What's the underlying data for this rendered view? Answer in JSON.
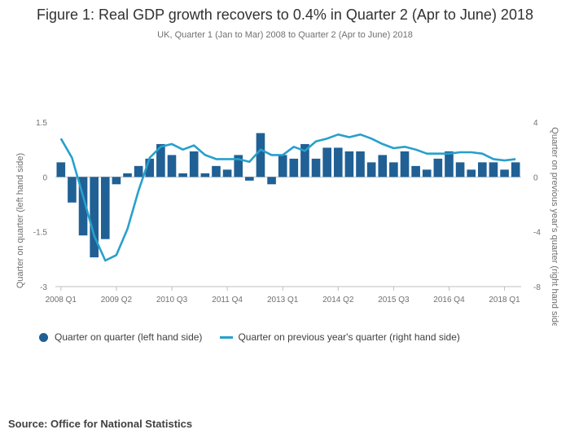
{
  "title": "Figure 1: Real GDP growth recovers to 0.4% in Quarter 2 (Apr to June) 2018",
  "subtitle": "UK, Quarter 1 (Jan to Mar) 2008 to Quarter 2 (Apr to June) 2018",
  "source": "Source: Office for National Statistics",
  "colors": {
    "bar": "#206095",
    "line": "#27a0cc",
    "axis": "#bfbfbf",
    "text": "#707071"
  },
  "chart_data": {
    "type": "bar+line",
    "categories": [
      "2008 Q1",
      "2008 Q2",
      "2008 Q3",
      "2008 Q4",
      "2009 Q1",
      "2009 Q2",
      "2009 Q3",
      "2009 Q4",
      "2010 Q1",
      "2010 Q2",
      "2010 Q3",
      "2010 Q4",
      "2011 Q1",
      "2011 Q2",
      "2011 Q3",
      "2011 Q4",
      "2012 Q1",
      "2012 Q2",
      "2012 Q3",
      "2012 Q4",
      "2013 Q1",
      "2013 Q2",
      "2013 Q3",
      "2013 Q4",
      "2014 Q1",
      "2014 Q2",
      "2014 Q3",
      "2014 Q4",
      "2015 Q1",
      "2015 Q2",
      "2015 Q3",
      "2015 Q4",
      "2016 Q1",
      "2016 Q2",
      "2016 Q3",
      "2016 Q4",
      "2017 Q1",
      "2017 Q2",
      "2017 Q3",
      "2017 Q4",
      "2018 Q1",
      "2018 Q2"
    ],
    "tick_labels": [
      "2008 Q1",
      "2009 Q2",
      "2010 Q3",
      "2011 Q4",
      "2013 Q1",
      "2014 Q2",
      "2015 Q3",
      "2016 Q4",
      "2018 Q1"
    ],
    "tick_indices": [
      0,
      5,
      10,
      15,
      20,
      25,
      30,
      35,
      40
    ],
    "series": [
      {
        "name": "Quarter on quarter (left hand side)",
        "type": "bar",
        "axis": "left",
        "values": [
          0.4,
          -0.7,
          -1.6,
          -2.2,
          -1.7,
          -0.2,
          0.1,
          0.3,
          0.5,
          0.9,
          0.6,
          0.1,
          0.7,
          0.1,
          0.3,
          0.2,
          0.6,
          -0.1,
          1.2,
          -0.2,
          0.6,
          0.5,
          0.9,
          0.5,
          0.8,
          0.8,
          0.7,
          0.7,
          0.4,
          0.6,
          0.4,
          0.7,
          0.3,
          0.2,
          0.5,
          0.7,
          0.4,
          0.2,
          0.4,
          0.4,
          0.2,
          0.4
        ]
      },
      {
        "name": "Quarter on previous year's quarter (right hand side)",
        "type": "line",
        "axis": "right",
        "values": [
          2.8,
          1.4,
          -1.4,
          -4.3,
          -6.1,
          -5.7,
          -3.8,
          -1.0,
          1.4,
          2.2,
          2.4,
          2.0,
          2.3,
          1.6,
          1.3,
          1.3,
          1.3,
          1.1,
          2.0,
          1.6,
          1.6,
          2.2,
          1.9,
          2.6,
          2.8,
          3.1,
          2.9,
          3.1,
          2.8,
          2.4,
          2.1,
          2.2,
          2.0,
          1.7,
          1.7,
          1.7,
          1.8,
          1.8,
          1.7,
          1.3,
          1.2,
          1.3
        ]
      }
    ],
    "y_left": {
      "label": "Quarter on quarter (left hand side)",
      "range": [
        -3,
        1.5
      ],
      "ticks": [
        "1.5",
        "0",
        "-1.5",
        "-3"
      ],
      "tick_values": [
        1.5,
        0,
        -1.5,
        -3
      ]
    },
    "y_right": {
      "label": "Quarter on previous year's quarter (right hand side)",
      "range": [
        -8,
        4
      ],
      "ticks": [
        "4",
        "0",
        "-4",
        "-8"
      ],
      "tick_values": [
        4,
        0,
        -4,
        -8
      ]
    },
    "legend_position": "bottom-left"
  }
}
